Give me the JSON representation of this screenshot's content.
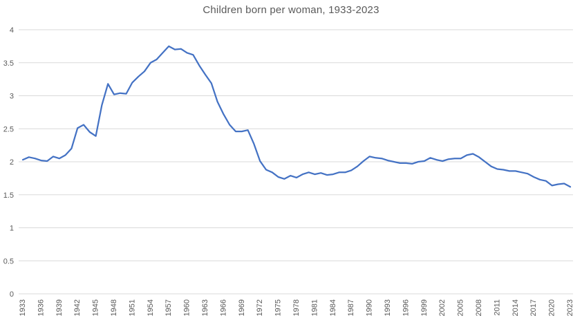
{
  "colors": {
    "line": "#4472C4",
    "gridline": "#D9D9D9",
    "axis_text": "#595959",
    "title_text": "#595959",
    "background": "#FFFFFF"
  },
  "chart_data": {
    "type": "line",
    "title": "Children born per woman, 1933-2023",
    "xlabel": "",
    "ylabel": "",
    "x_start": 1933,
    "x_end": 2023,
    "x_label_step": 3,
    "ylim": [
      0,
      4
    ],
    "yticks": [
      0,
      0.5,
      1,
      1.5,
      2,
      2.5,
      3,
      3.5,
      4
    ],
    "xtick_labels": [
      "1933",
      "1936",
      "1939",
      "1942",
      "1945",
      "1948",
      "1951",
      "1954",
      "1957",
      "1960",
      "1963",
      "1966",
      "1969",
      "1972",
      "1975",
      "1978",
      "1981",
      "1984",
      "1987",
      "1990",
      "1993",
      "1996",
      "1999",
      "2002",
      "2005",
      "2008",
      "2011",
      "2014",
      "2017",
      "2020",
      "2023"
    ],
    "grid": "horizontal",
    "legend_position": "none",
    "series": [
      {
        "name": "Children born per woman",
        "x": [
          1933,
          1934,
          1935,
          1936,
          1937,
          1938,
          1939,
          1940,
          1941,
          1942,
          1943,
          1944,
          1945,
          1946,
          1947,
          1948,
          1949,
          1950,
          1951,
          1952,
          1953,
          1954,
          1955,
          1956,
          1957,
          1958,
          1959,
          1960,
          1961,
          1962,
          1963,
          1964,
          1965,
          1966,
          1967,
          1968,
          1969,
          1970,
          1971,
          1972,
          1973,
          1974,
          1975,
          1976,
          1977,
          1978,
          1979,
          1980,
          1981,
          1982,
          1983,
          1984,
          1985,
          1986,
          1987,
          1988,
          1989,
          1990,
          1991,
          1992,
          1993,
          1994,
          1995,
          1996,
          1997,
          1998,
          1999,
          2000,
          2001,
          2002,
          2003,
          2004,
          2005,
          2006,
          2007,
          2008,
          2009,
          2010,
          2011,
          2012,
          2013,
          2014,
          2015,
          2016,
          2017,
          2018,
          2019,
          2020,
          2021,
          2022,
          2023
        ],
        "values": [
          2.03,
          2.07,
          2.05,
          2.02,
          2.01,
          2.08,
          2.05,
          2.1,
          2.2,
          2.51,
          2.56,
          2.45,
          2.39,
          2.86,
          3.18,
          3.02,
          3.04,
          3.03,
          3.2,
          3.29,
          3.37,
          3.5,
          3.55,
          3.65,
          3.75,
          3.7,
          3.71,
          3.65,
          3.62,
          3.46,
          3.32,
          3.19,
          2.91,
          2.72,
          2.56,
          2.46,
          2.46,
          2.48,
          2.27,
          2.01,
          1.88,
          1.84,
          1.77,
          1.74,
          1.79,
          1.76,
          1.81,
          1.84,
          1.81,
          1.83,
          1.8,
          1.81,
          1.84,
          1.84,
          1.87,
          1.93,
          2.01,
          2.08,
          2.06,
          2.05,
          2.02,
          2.0,
          1.98,
          1.98,
          1.97,
          2.0,
          2.01,
          2.06,
          2.03,
          2.01,
          2.04,
          2.05,
          2.05,
          2.1,
          2.12,
          2.07,
          2.0,
          1.93,
          1.89,
          1.88,
          1.86,
          1.86,
          1.84,
          1.82,
          1.77,
          1.73,
          1.71,
          1.64,
          1.66,
          1.67,
          1.62
        ]
      }
    ]
  }
}
